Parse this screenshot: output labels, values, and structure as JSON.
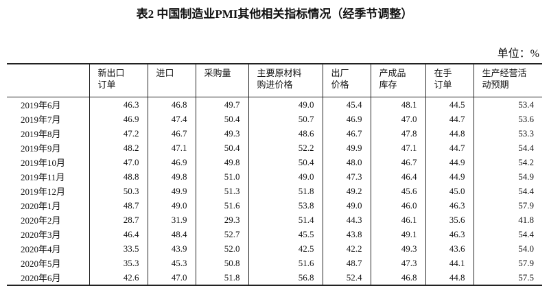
{
  "header": {
    "title": "表2 中国制造业PMI其他相关指标情况（经季节调整）",
    "unit": "单位：%"
  },
  "table": {
    "columns": [
      [
        "新出口",
        "订单"
      ],
      [
        "进口"
      ],
      [
        "采购量"
      ],
      [
        "主要原材料",
        "购进价格"
      ],
      [
        "出厂",
        "价格"
      ],
      [
        "产成品",
        "库存"
      ],
      [
        "在手",
        "订单"
      ],
      [
        "生产经营活",
        "动预期"
      ]
    ],
    "rows": [
      [
        "2019年6月",
        "46.3",
        "46.8",
        "49.7",
        "49.0",
        "45.4",
        "48.1",
        "44.5",
        "53.4"
      ],
      [
        "2019年7月",
        "46.9",
        "47.4",
        "50.4",
        "50.7",
        "46.9",
        "47.0",
        "44.7",
        "53.6"
      ],
      [
        "2019年8月",
        "47.2",
        "46.7",
        "49.3",
        "48.6",
        "46.7",
        "47.8",
        "44.8",
        "53.3"
      ],
      [
        "2019年9月",
        "48.2",
        "47.1",
        "50.4",
        "52.2",
        "49.9",
        "47.1",
        "44.7",
        "54.4"
      ],
      [
        "2019年10月",
        "47.0",
        "46.9",
        "49.8",
        "50.4",
        "48.0",
        "46.7",
        "44.9",
        "54.2"
      ],
      [
        "2019年11月",
        "48.8",
        "49.8",
        "51.0",
        "49.0",
        "47.3",
        "46.4",
        "44.9",
        "54.9"
      ],
      [
        "2019年12月",
        "50.3",
        "49.9",
        "51.3",
        "51.8",
        "49.2",
        "45.6",
        "45.0",
        "54.4"
      ],
      [
        "2020年1月",
        "48.7",
        "49.0",
        "51.6",
        "53.8",
        "49.0",
        "46.0",
        "46.3",
        "57.9"
      ],
      [
        "2020年2月",
        "28.7",
        "31.9",
        "29.3",
        "51.4",
        "44.3",
        "46.1",
        "35.6",
        "41.8"
      ],
      [
        "2020年3月",
        "46.4",
        "48.4",
        "52.7",
        "45.5",
        "43.8",
        "49.1",
        "46.3",
        "54.4"
      ],
      [
        "2020年4月",
        "33.5",
        "43.9",
        "52.0",
        "42.5",
        "42.2",
        "49.3",
        "43.6",
        "54.0"
      ],
      [
        "2020年5月",
        "35.3",
        "45.3",
        "50.8",
        "51.6",
        "48.7",
        "47.3",
        "44.1",
        "57.9"
      ],
      [
        "2020年6月",
        "42.6",
        "47.0",
        "51.8",
        "56.8",
        "52.4",
        "46.8",
        "44.8",
        "57.5"
      ]
    ]
  }
}
